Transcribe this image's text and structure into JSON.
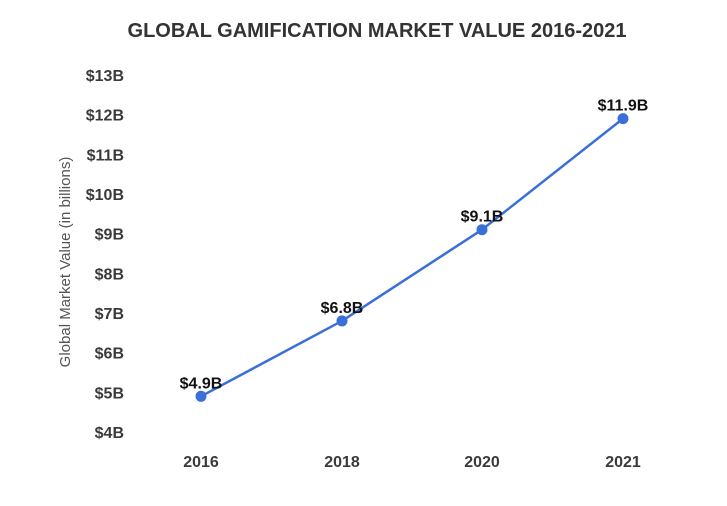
{
  "chart_data": {
    "type": "line",
    "title": "GLOBAL GAMIFICATION MARKET VALUE 2016-2021",
    "xlabel": "",
    "ylabel": "Global Market Value (in billions)",
    "categories": [
      "2016",
      "2018",
      "2020",
      "2021"
    ],
    "series": [
      {
        "values": [
          4.9,
          6.8,
          9.1,
          11.9
        ],
        "data_labels": [
          "$4.9B",
          "$6.8B",
          "$9.1B",
          "$11.9B"
        ]
      }
    ],
    "ylim": [
      4,
      13
    ],
    "y_ticks": [
      {
        "value": 13,
        "label": "$13B"
      },
      {
        "value": 12,
        "label": "$12B"
      },
      {
        "value": 11,
        "label": "$11B"
      },
      {
        "value": 10,
        "label": "$10B"
      },
      {
        "value": 9,
        "label": "$9B"
      },
      {
        "value": 8,
        "label": "$8B"
      },
      {
        "value": 7,
        "label": "$7B"
      },
      {
        "value": 6,
        "label": "$6B"
      },
      {
        "value": 5,
        "label": "$5B"
      },
      {
        "value": 4,
        "label": "$4B"
      }
    ],
    "grid": false,
    "legend": "none",
    "line_color": "#3a6fd8",
    "marker_color": "#3a6fd8"
  }
}
